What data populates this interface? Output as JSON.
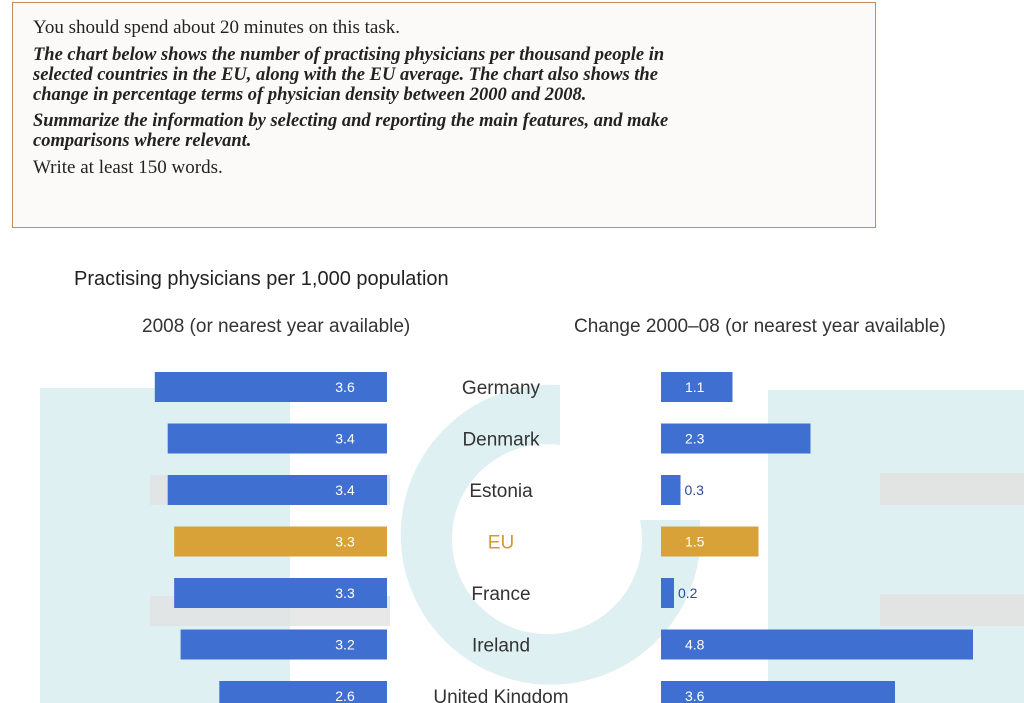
{
  "task": {
    "intro": "You should spend about 20 minutes on this task.",
    "prompt_lines": [
      "The chart below shows the number of practising physicians per thousand people in",
      "selected countries in the EU, along with the EU average. The chart also shows the",
      "change in percentage terms of physician density between 2000 and 2008."
    ],
    "instruction_lines": [
      "Summarize the information by selecting and reporting the main features, and make",
      "comparisons where relevant."
    ],
    "word_limit": "Write at least 150 words."
  },
  "colors": {
    "bar": "#3f6fd0",
    "eu_bar": "#d9a238",
    "backdrop": "#dff0f2"
  },
  "chart_data": {
    "type": "bar",
    "title": "Practising physicians per 1,000 population",
    "categories": [
      "Germany",
      "Denmark",
      "Estonia",
      "EU",
      "France",
      "Ireland",
      "United Kingdom"
    ],
    "highlight": "EU",
    "series": [
      {
        "name": "2008 (or nearest year available)",
        "values": [
          3.6,
          3.4,
          3.4,
          3.3,
          3.3,
          3.2,
          2.6
        ],
        "labels": [
          "3.6",
          "3.4",
          "3.4",
          "3.3",
          "3.3",
          "3.2",
          "2.6"
        ]
      },
      {
        "name": "Change 2000–08 (or nearest year available)",
        "values": [
          1.1,
          2.3,
          0.3,
          1.5,
          0.2,
          4.8,
          3.6
        ],
        "labels": [
          "1.1",
          "2.3",
          "0.3",
          "1.5",
          "0.2",
          "4.8",
          "3.6"
        ]
      }
    ]
  }
}
